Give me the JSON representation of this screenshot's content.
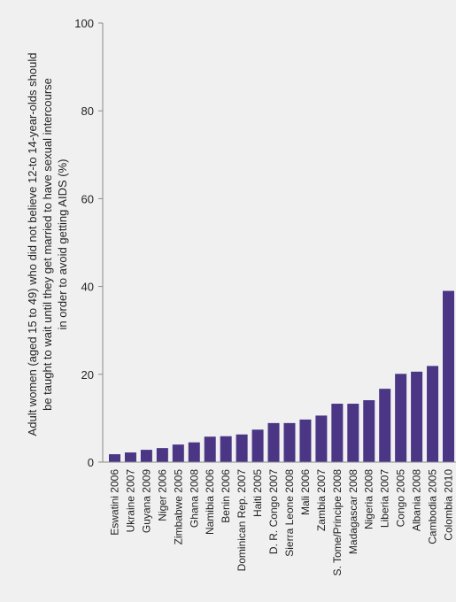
{
  "chart_data": {
    "type": "bar",
    "title": "",
    "xlabel": "",
    "ylabel_lines": [
      "Adult women (aged 15 to 49) who did not believe 12-to 14-year-olds should",
      "be taught to wait until they get married to have sexual intercourse",
      "in order to avoid getting AIDS (%)"
    ],
    "ylim": [
      0,
      100
    ],
    "yticks": [
      0,
      20,
      40,
      60,
      80,
      100
    ],
    "grid": false,
    "bar_color": "#4b3585",
    "categories": [
      "Eswatini 2006",
      "Ukraine 2007",
      "Guyana 2009",
      "Niger 2006",
      "Zimbabwe 2005",
      "Ghana 2008",
      "Namibia 2006",
      "Benin 2006",
      "Dominican Rep. 2007",
      "Haiti 2005",
      "D. R. Congo 2007",
      "Sierra Leone 2008",
      "Mali 2006",
      "Zambia 2007",
      "S. Tome/Principe 2008",
      "Madagascar 2008",
      "Nigeria 2008",
      "Liberia 2007",
      "Congo 2005",
      "Albania 2008",
      "Cambodia 2005",
      "Colombia 2010"
    ],
    "values": [
      1.8,
      2.2,
      2.8,
      3.2,
      4.0,
      4.5,
      5.8,
      5.9,
      6.3,
      7.4,
      8.9,
      8.9,
      9.7,
      10.6,
      13.3,
      13.3,
      14.1,
      16.7,
      20.1,
      20.6,
      21.9,
      39.0
    ]
  }
}
